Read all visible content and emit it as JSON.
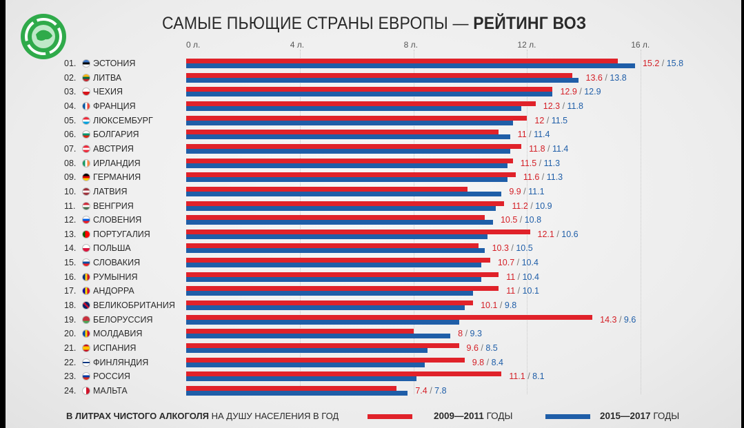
{
  "header": {
    "title_normal": "САМЫЕ ПЬЮЩИЕ СТРАНЫ ЕВРОПЫ — ",
    "title_bold": "РЕЙТИНГ ВОЗ"
  },
  "footer": {
    "unit_bold": "В ЛИТРАХ ЧИСТОГО АЛКОГОЛЯ",
    "unit_normal": " НА ДУШУ НАСЕЛЕНИЯ В ГОД"
  },
  "legend": [
    {
      "period": "2009—2011",
      "suffix": " ГОДЫ",
      "color": "#e0222a"
    },
    {
      "period": "2015—2017",
      "suffix": " ГОДЫ",
      "color": "#1f5ea8"
    }
  ],
  "chart_data": {
    "type": "bar",
    "orientation": "horizontal",
    "title": "САМЫЕ ПЬЮЩИЕ СТРАНЫ ЕВРОПЫ — РЕЙТИНГ ВОЗ",
    "xlim": [
      0,
      16
    ],
    "x_ticks": [
      {
        "value": 0,
        "label": "0 л."
      },
      {
        "value": 4,
        "label": "4 л."
      },
      {
        "value": 8,
        "label": "8 л."
      },
      {
        "value": 12,
        "label": "12 л."
      },
      {
        "value": 16,
        "label": "16 л."
      }
    ],
    "grid": true,
    "legend_position": "bottom",
    "value_separator": " / ",
    "series": [
      {
        "name": "2009—2011 ГОДЫ",
        "color": "#e0222a"
      },
      {
        "name": "2015—2017 ГОДЫ",
        "color": "#1f5ea8"
      }
    ],
    "rows": [
      {
        "rank": "01.",
        "country": "Эстония",
        "flag": "ee",
        "v1": 15.2,
        "v2": 15.8
      },
      {
        "rank": "02.",
        "country": "Литва",
        "flag": "lt",
        "v1": 13.6,
        "v2": 13.8
      },
      {
        "rank": "03.",
        "country": "Чехия",
        "flag": "cz",
        "v1": 12.9,
        "v2": 12.9
      },
      {
        "rank": "04.",
        "country": "Франция",
        "flag": "fr",
        "v1": 12.3,
        "v2": 11.8
      },
      {
        "rank": "05.",
        "country": "Люксембург",
        "flag": "lu",
        "v1": 12,
        "v2": 11.5
      },
      {
        "rank": "06.",
        "country": "Болгария",
        "flag": "bg",
        "v1": 11,
        "v2": 11.4
      },
      {
        "rank": "07.",
        "country": "Австрия",
        "flag": "at",
        "v1": 11.8,
        "v2": 11.4
      },
      {
        "rank": "08.",
        "country": "Ирландия",
        "flag": "ie",
        "v1": 11.5,
        "v2": 11.3
      },
      {
        "rank": "09.",
        "country": "Германия",
        "flag": "de",
        "v1": 11.6,
        "v2": 11.3
      },
      {
        "rank": "10.",
        "country": "Латвия",
        "flag": "lv",
        "v1": 9.9,
        "v2": 11.1
      },
      {
        "rank": "11.",
        "country": "Венгрия",
        "flag": "hu",
        "v1": 11.2,
        "v2": 10.9
      },
      {
        "rank": "12.",
        "country": "Словения",
        "flag": "si",
        "v1": 10.5,
        "v2": 10.8
      },
      {
        "rank": "13.",
        "country": "Португалия",
        "flag": "pt",
        "v1": 12.1,
        "v2": 10.6
      },
      {
        "rank": "14.",
        "country": "Польша",
        "flag": "pl",
        "v1": 10.3,
        "v2": 10.5
      },
      {
        "rank": "15.",
        "country": "Словакия",
        "flag": "sk",
        "v1": 10.7,
        "v2": 10.4
      },
      {
        "rank": "16.",
        "country": "Румыния",
        "flag": "ro",
        "v1": 11,
        "v2": 10.4
      },
      {
        "rank": "17.",
        "country": "Андорра",
        "flag": "ad",
        "v1": 11,
        "v2": 10.1
      },
      {
        "rank": "18.",
        "country": "Великобритания",
        "flag": "gb",
        "v1": 10.1,
        "v2": 9.8
      },
      {
        "rank": "19.",
        "country": "Белоруссия",
        "flag": "by",
        "v1": 14.3,
        "v2": 9.6
      },
      {
        "rank": "20.",
        "country": "Молдавия",
        "flag": "md",
        "v1": 8,
        "v2": 9.3
      },
      {
        "rank": "21.",
        "country": "Испания",
        "flag": "es",
        "v1": 9.6,
        "v2": 8.5
      },
      {
        "rank": "22.",
        "country": "Финляндия",
        "flag": "fi",
        "v1": 9.8,
        "v2": 8.4
      },
      {
        "rank": "23.",
        "country": "Россия",
        "flag": "ru",
        "v1": 11.1,
        "v2": 8.1
      },
      {
        "rank": "24.",
        "country": "Мальта",
        "flag": "mt",
        "v1": 7.4,
        "v2": 7.8
      }
    ]
  }
}
